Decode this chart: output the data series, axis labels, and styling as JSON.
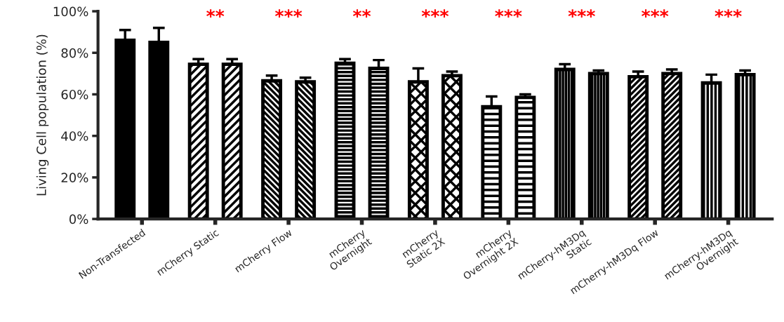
{
  "chart_data": {
    "type": "bar",
    "ylabel": "Living Cell population (%)",
    "categories": [
      "Non-Transfected",
      "mCherry Static",
      "mCherry Flow",
      "mCherry\nOvernight",
      "mCherry\nStatic 2X",
      "mCherry\nOvernight 2X",
      "mCherry-hM3Dq\nStatic",
      "mCherry-hM3Dq Flow",
      "mCherry-hM3Dq\nOvernight"
    ],
    "series": [
      {
        "color": "#000000",
        "values": [
          86,
          74.5,
          66.5,
          75,
          66,
          54,
          72,
          68.5,
          65.5
        ],
        "errors": [
          [
            86,
            91
          ],
          [
            74.5,
            77
          ],
          [
            66.5,
            69
          ],
          [
            75,
            77
          ],
          [
            66,
            72.5
          ],
          [
            54,
            59
          ],
          [
            72,
            74.5
          ],
          [
            68.5,
            71
          ],
          [
            65.5,
            69.5
          ]
        ]
      },
      {
        "color": "#000000",
        "values": [
          85,
          74.5,
          66,
          72.5,
          69,
          58.5,
          70,
          70,
          69.5
        ],
        "errors": [
          [
            85,
            92
          ],
          [
            74.5,
            77
          ],
          [
            66,
            68
          ],
          [
            72.5,
            76.5
          ],
          [
            69,
            71
          ],
          [
            58.5,
            60
          ],
          [
            70,
            71.5
          ],
          [
            70,
            72
          ],
          [
            69.5,
            71.5
          ]
        ]
      }
    ],
    "ylim": [
      0,
      100
    ],
    "yticks": [
      {
        "value": 0,
        "label": "0%"
      },
      {
        "value": 20,
        "label": "20%"
      },
      {
        "value": 40,
        "label": "40%"
      },
      {
        "value": 60,
        "label": "60%"
      },
      {
        "value": 80,
        "label": "80%"
      },
      {
        "value": 100,
        "label": "100%"
      }
    ],
    "grid": false,
    "annotations": [
      "**",
      "***",
      "**",
      "***",
      "***",
      "***",
      "***",
      "***"
    ]
  }
}
